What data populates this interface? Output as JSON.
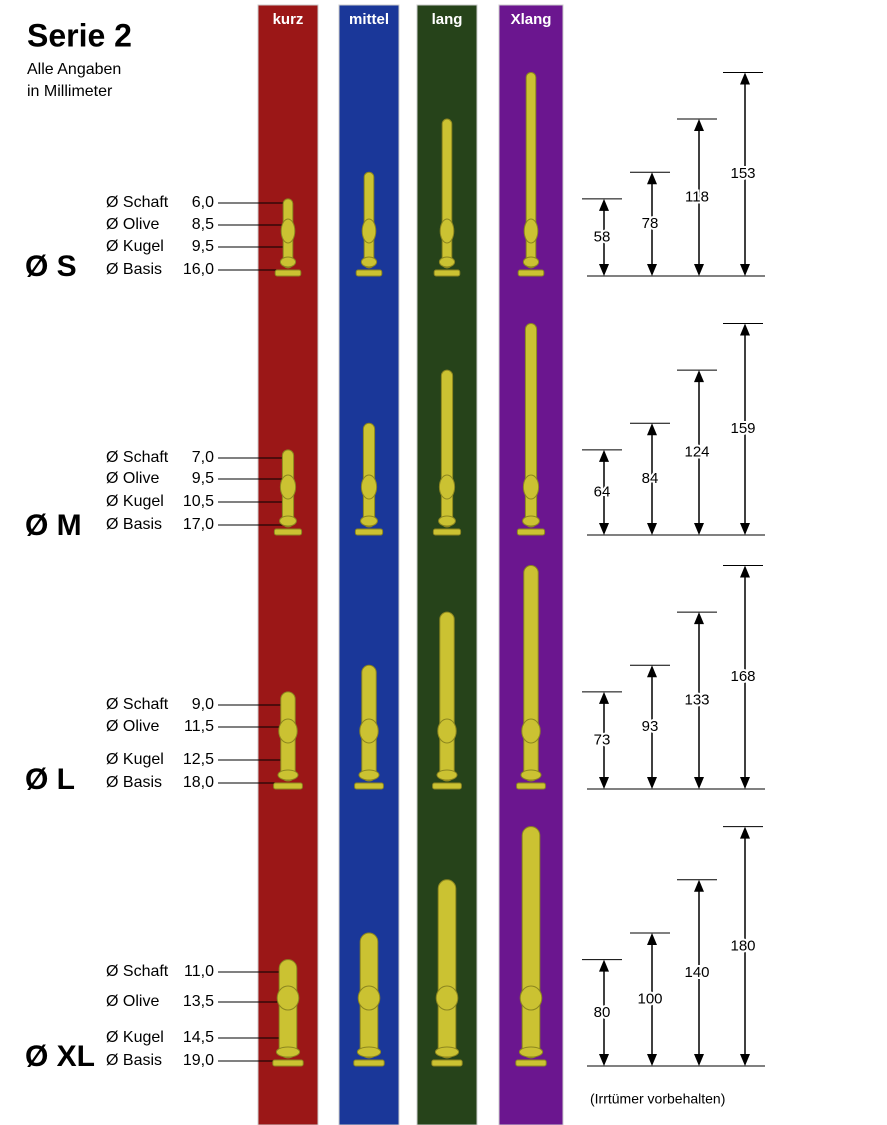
{
  "title": "Serie 2",
  "subtitle": [
    "Alle Angaben",
    "in Millimeter"
  ],
  "columns": [
    {
      "label": "kurz",
      "color": "#9b1717"
    },
    {
      "label": "mittel",
      "color": "#1a3799"
    },
    {
      "label": "lang",
      "color": "#26431a"
    },
    {
      "label": "Xlang",
      "color": "#6b168f"
    }
  ],
  "sizes": [
    {
      "label": "Ø S",
      "diameters": [
        {
          "label": "Ø Schaft",
          "value": "6,0"
        },
        {
          "label": "Ø Olive",
          "value": "8,5"
        },
        {
          "label": "Ø Kugel",
          "value": "9,5"
        },
        {
          "label": "Ø Basis",
          "value": "16,0"
        }
      ],
      "lengths": [
        58,
        78,
        118,
        153
      ]
    },
    {
      "label": "Ø M",
      "diameters": [
        {
          "label": "Ø Schaft",
          "value": "7,0"
        },
        {
          "label": "Ø Olive",
          "value": "9,5"
        },
        {
          "label": "Ø Kugel",
          "value": "10,5"
        },
        {
          "label": "Ø Basis",
          "value": "17,0"
        }
      ],
      "lengths": [
        64,
        84,
        124,
        159
      ]
    },
    {
      "label": "Ø L",
      "diameters": [
        {
          "label": "Ø Schaft",
          "value": "9,0"
        },
        {
          "label": "Ø Olive",
          "value": "11,5"
        },
        {
          "label": "Ø Kugel",
          "value": "12,5"
        },
        {
          "label": "Ø Basis",
          "value": "18,0"
        }
      ],
      "lengths": [
        73,
        93,
        133,
        168
      ]
    },
    {
      "label": "Ø XL",
      "diameters": [
        {
          "label": "Ø Schaft",
          "value": "11,0"
        },
        {
          "label": "Ø Olive",
          "value": "13,5"
        },
        {
          "label": "Ø Kugel",
          "value": "14,5"
        },
        {
          "label": "Ø Basis",
          "value": "19,0"
        }
      ],
      "lengths": [
        80,
        100,
        140,
        180
      ]
    }
  ],
  "footnote": "(Irrtümer vorbehalten)"
}
